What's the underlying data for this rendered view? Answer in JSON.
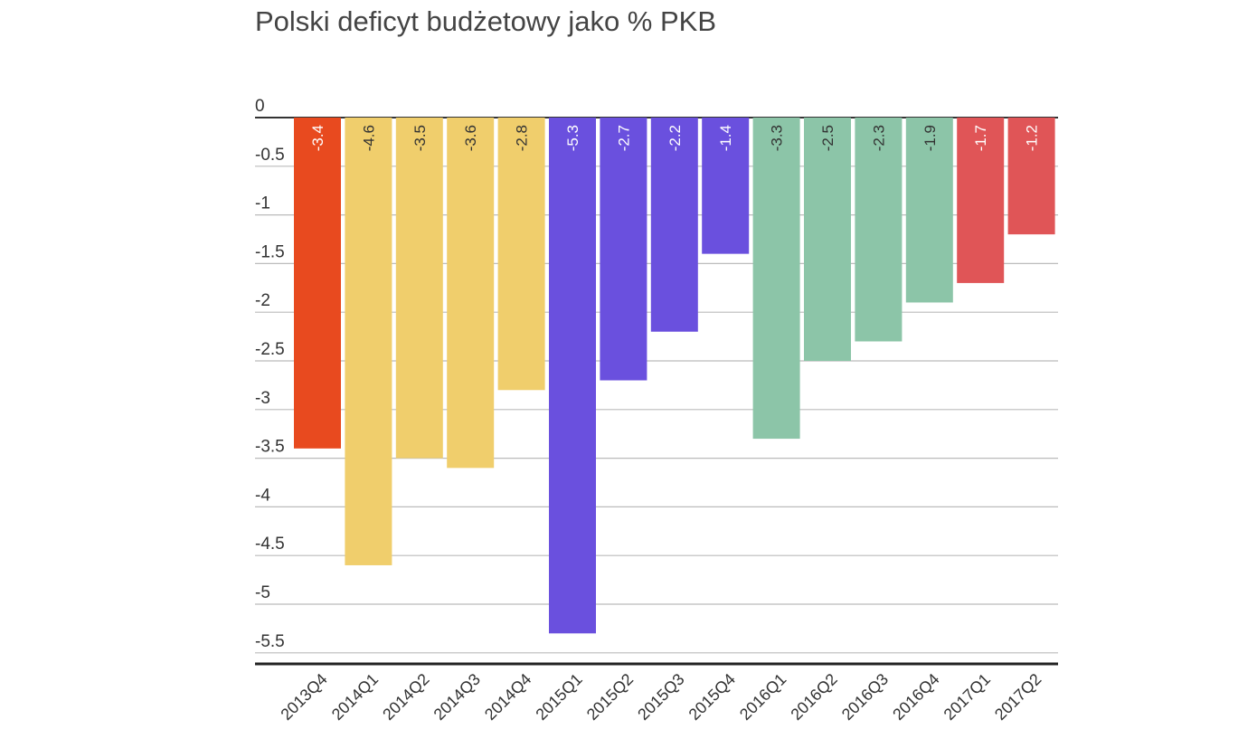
{
  "chart_data": {
    "type": "bar",
    "title": "Polski deficyt budżetowy jako % PKB",
    "xlabel": "",
    "ylabel": "",
    "categories": [
      "2013Q4",
      "2014Q1",
      "2014Q2",
      "2014Q3",
      "2014Q4",
      "2015Q1",
      "2015Q2",
      "2015Q3",
      "2015Q4",
      "2016Q1",
      "2016Q2",
      "2016Q3",
      "2016Q4",
      "2017Q1",
      "2017Q2"
    ],
    "values": [
      -3.4,
      -4.6,
      -3.5,
      -3.6,
      -2.8,
      -5.3,
      -2.7,
      -2.2,
      -1.4,
      -3.3,
      -2.5,
      -2.3,
      -1.9,
      -1.7,
      -1.2
    ],
    "data_labels": [
      "-3.4",
      "-4.6",
      "-3.5",
      "-3.6",
      "-2.8",
      "-5.3",
      "-2.7",
      "-2.2",
      "-1.4",
      "-3.3",
      "-2.5",
      "-2.3",
      "-1.9",
      "-1.7",
      "-1.2"
    ],
    "bar_colors": [
      "#E84A1F",
      "#F0CE6C",
      "#F0CE6C",
      "#F0CE6C",
      "#F0CE6C",
      "#6A50DE",
      "#6A50DE",
      "#6A50DE",
      "#6A50DE",
      "#8CC5A8",
      "#8CC5A8",
      "#8CC5A8",
      "#8CC5A8",
      "#E05557",
      "#E05557"
    ],
    "label_colors": [
      "#ffffff",
      "#333333",
      "#333333",
      "#333333",
      "#333333",
      "#ffffff",
      "#ffffff",
      "#ffffff",
      "#ffffff",
      "#333333",
      "#333333",
      "#333333",
      "#333333",
      "#ffffff",
      "#ffffff"
    ],
    "yticks": [
      "0",
      "-0.5",
      "-1",
      "-1.5",
      "-2",
      "-2.5",
      "-3",
      "-3.5",
      "-4",
      "-4.5",
      "-5",
      "-5.5"
    ],
    "ylim": [
      -5.6,
      0
    ],
    "grid": true,
    "legend": "none"
  }
}
